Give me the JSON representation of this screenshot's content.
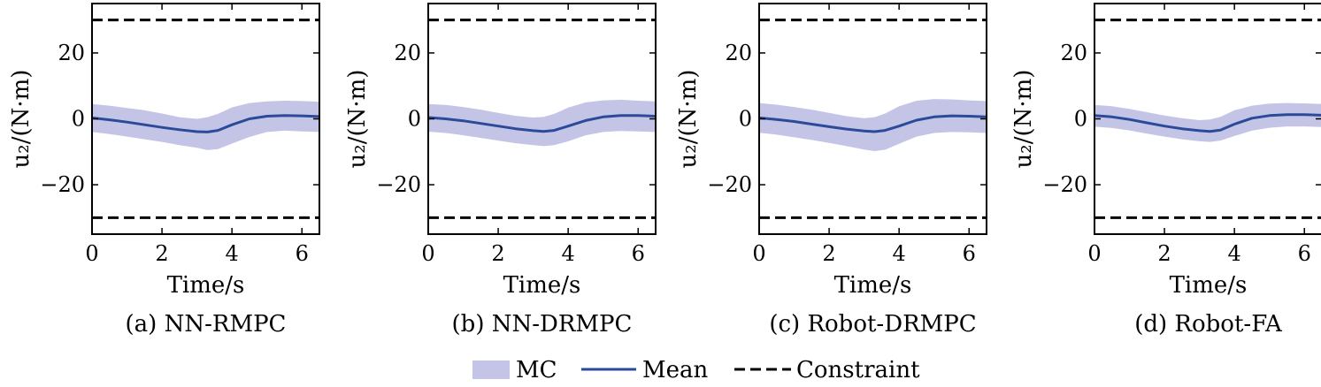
{
  "colors": {
    "band": "#c4c5e6",
    "mean": "#2b4a9a",
    "constraint": "#000000",
    "axis": "#000000"
  },
  "legend": {
    "placement": "bottom-center",
    "items": [
      {
        "label": "MC",
        "kind": "band"
      },
      {
        "label": "Mean",
        "kind": "line"
      },
      {
        "label": "Constraint",
        "kind": "dashed"
      }
    ]
  },
  "chart_data": [
    {
      "type": "area",
      "caption": "(a) NN-RMPC",
      "xlabel": "Time/s",
      "ylabel": "u₂/(N·m)",
      "xlim": [
        0,
        6.5
      ],
      "ylim": [
        -35,
        35
      ],
      "xticks": [
        0,
        2,
        4,
        6
      ],
      "yticks": [
        -20,
        0,
        20
      ],
      "constraints": [
        30,
        -30
      ],
      "x": [
        0,
        0.5,
        1.0,
        1.5,
        2.0,
        2.5,
        3.0,
        3.3,
        3.6,
        4.0,
        4.5,
        5.0,
        5.5,
        6.0,
        6.5
      ],
      "mean": [
        0.3,
        -0.3,
        -1.0,
        -1.8,
        -2.6,
        -3.3,
        -3.9,
        -4.0,
        -3.5,
        -1.8,
        0.0,
        0.8,
        1.0,
        0.9,
        0.7
      ],
      "upper": [
        4.5,
        4.0,
        3.3,
        2.6,
        1.6,
        0.5,
        0.0,
        0.5,
        1.5,
        3.5,
        4.8,
        5.3,
        5.5,
        5.4,
        5.2
      ],
      "lower": [
        -4.0,
        -4.6,
        -5.4,
        -6.2,
        -7.0,
        -8.0,
        -8.8,
        -9.5,
        -9.2,
        -7.5,
        -5.5,
        -4.0,
        -3.6,
        -3.8,
        -4.0
      ]
    },
    {
      "type": "area",
      "caption": "(b) NN-DRMPC",
      "xlabel": "Time/s",
      "ylabel": "u₂/(N·m)",
      "xlim": [
        0,
        6.5
      ],
      "ylim": [
        -35,
        35
      ],
      "xticks": [
        0,
        2,
        4,
        6
      ],
      "yticks": [
        -20,
        0,
        20
      ],
      "constraints": [
        30,
        -30
      ],
      "x": [
        0,
        0.5,
        1.0,
        1.5,
        2.0,
        2.5,
        3.0,
        3.3,
        3.6,
        4.0,
        4.5,
        5.0,
        5.5,
        6.0,
        6.5
      ],
      "mean": [
        0.4,
        0.0,
        -0.6,
        -1.4,
        -2.2,
        -3.0,
        -3.6,
        -3.8,
        -3.5,
        -2.2,
        -0.5,
        0.6,
        1.0,
        1.0,
        0.8
      ],
      "upper": [
        4.5,
        4.2,
        3.6,
        2.8,
        1.8,
        0.9,
        0.4,
        0.6,
        1.5,
        3.4,
        5.0,
        5.6,
        5.8,
        5.5,
        5.3
      ],
      "lower": [
        -3.9,
        -4.3,
        -5.0,
        -5.8,
        -6.6,
        -7.4,
        -8.0,
        -8.3,
        -8.0,
        -6.8,
        -5.0,
        -4.0,
        -3.7,
        -3.8,
        -4.0
      ]
    },
    {
      "type": "area",
      "caption": "(c) Robot-DRMPC",
      "xlabel": "Time/s",
      "ylabel": "u₂/(N·m)",
      "xlim": [
        0,
        6.5
      ],
      "ylim": [
        -35,
        35
      ],
      "xticks": [
        0,
        2,
        4,
        6
      ],
      "yticks": [
        -20,
        0,
        20
      ],
      "constraints": [
        30,
        -30
      ],
      "x": [
        0,
        0.5,
        1.0,
        1.5,
        2.0,
        2.5,
        3.0,
        3.3,
        3.6,
        4.0,
        4.5,
        5.0,
        5.5,
        6.0,
        6.5
      ],
      "mean": [
        0.3,
        -0.2,
        -0.8,
        -1.6,
        -2.4,
        -3.1,
        -3.7,
        -3.9,
        -3.5,
        -2.2,
        -0.4,
        0.6,
        0.9,
        0.8,
        0.6
      ],
      "upper": [
        4.8,
        4.3,
        3.6,
        2.8,
        1.8,
        0.8,
        0.2,
        0.5,
        1.6,
        3.8,
        5.5,
        6.0,
        5.9,
        5.6,
        5.4
      ],
      "lower": [
        -4.2,
        -4.8,
        -5.6,
        -6.4,
        -7.3,
        -8.3,
        -9.3,
        -9.8,
        -9.4,
        -7.6,
        -5.4,
        -4.3,
        -4.0,
        -4.1,
        -4.3
      ]
    },
    {
      "type": "area",
      "caption": "(d) Robot-FA",
      "xlabel": "Time/s",
      "ylabel": "u₂/(N·m)",
      "xlim": [
        0,
        6.5
      ],
      "ylim": [
        -35,
        35
      ],
      "xticks": [
        0,
        2,
        4,
        6
      ],
      "yticks": [
        -20,
        0,
        20
      ],
      "constraints": [
        30,
        -30
      ],
      "x": [
        0,
        0.5,
        1.0,
        1.5,
        2.0,
        2.5,
        3.0,
        3.3,
        3.6,
        4.0,
        4.5,
        5.0,
        5.5,
        6.0,
        6.5
      ],
      "mean": [
        1.0,
        0.6,
        -0.2,
        -1.2,
        -2.2,
        -3.0,
        -3.6,
        -3.8,
        -3.4,
        -1.6,
        0.2,
        1.0,
        1.3,
        1.3,
        1.1
      ],
      "upper": [
        4.2,
        3.8,
        3.0,
        2.0,
        1.0,
        0.2,
        -0.4,
        -0.2,
        0.6,
        2.6,
        4.0,
        4.6,
        4.8,
        4.7,
        4.5
      ],
      "lower": [
        -2.4,
        -2.8,
        -3.5,
        -4.5,
        -5.4,
        -6.2,
        -6.8,
        -7.0,
        -6.6,
        -5.2,
        -3.6,
        -2.7,
        -2.3,
        -2.3,
        -2.5
      ]
    }
  ]
}
